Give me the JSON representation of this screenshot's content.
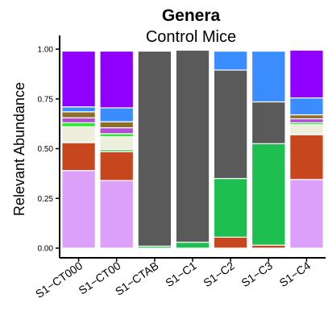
{
  "chart_data": {
    "type": "bar",
    "stacked": true,
    "title": "Genera",
    "subtitle": "Control Mice",
    "ylabel": "Relevant Abundance",
    "xlabel": "",
    "ylim": [
      0,
      1.0
    ],
    "yticks": [
      "0.00",
      "0.25",
      "0.50",
      "0.75",
      "1.00"
    ],
    "ytick_values": [
      0,
      0.25,
      0.5,
      0.75,
      1.0
    ],
    "categories": [
      "S1−CT000",
      "S1−CT00",
      "S1−CTAB",
      "S1−C1",
      "S1−C2",
      "S1−C3",
      "S1−C4"
    ],
    "grid": false,
    "legend": "none",
    "series": [
      {
        "color": "#dda0fa",
        "values": [
          0.39,
          0.34,
          0.0,
          0.0,
          0.0,
          0.0,
          0.345
        ]
      },
      {
        "color": "#c8461e",
        "values": [
          0.14,
          0.145,
          0.0,
          0.0,
          0.055,
          0.015,
          0.225
        ]
      },
      {
        "color": "#1fbe50",
        "values": [
          0.0,
          0.01,
          0.01,
          0.03,
          0.295,
          0.51,
          0.0
        ]
      },
      {
        "color": "#5a5a5a",
        "values": [
          0.0,
          0.0,
          0.98,
          0.965,
          0.545,
          0.21,
          0.0
        ]
      },
      {
        "color": "#eeeedc",
        "values": [
          0.08,
          0.065,
          0.0,
          0.0,
          0.0,
          0.0,
          0.05
        ]
      },
      {
        "color": "#22ee22",
        "values": [
          0.02,
          0.015,
          0.0,
          0.0,
          0.0,
          0.0,
          0.01
        ]
      },
      {
        "color": "#b24bd6",
        "values": [
          0.025,
          0.03,
          0.0,
          0.0,
          0.0,
          0.0,
          0.02
        ]
      },
      {
        "color": "#8c6e28",
        "values": [
          0.03,
          0.03,
          0.0,
          0.0,
          0.0,
          0.0,
          0.02
        ]
      },
      {
        "color": "#3a8cff",
        "values": [
          0.025,
          0.07,
          0.0,
          0.0,
          0.095,
          0.255,
          0.085
        ]
      },
      {
        "color": "#8f00ff",
        "values": [
          0.28,
          0.285,
          0.0,
          0.0,
          0.0,
          0.0,
          0.24
        ]
      },
      {
        "color": "#e8385a",
        "values": [
          0.0,
          0.0,
          0.0,
          0.0,
          0.005,
          0.005,
          0.0
        ]
      }
    ]
  }
}
